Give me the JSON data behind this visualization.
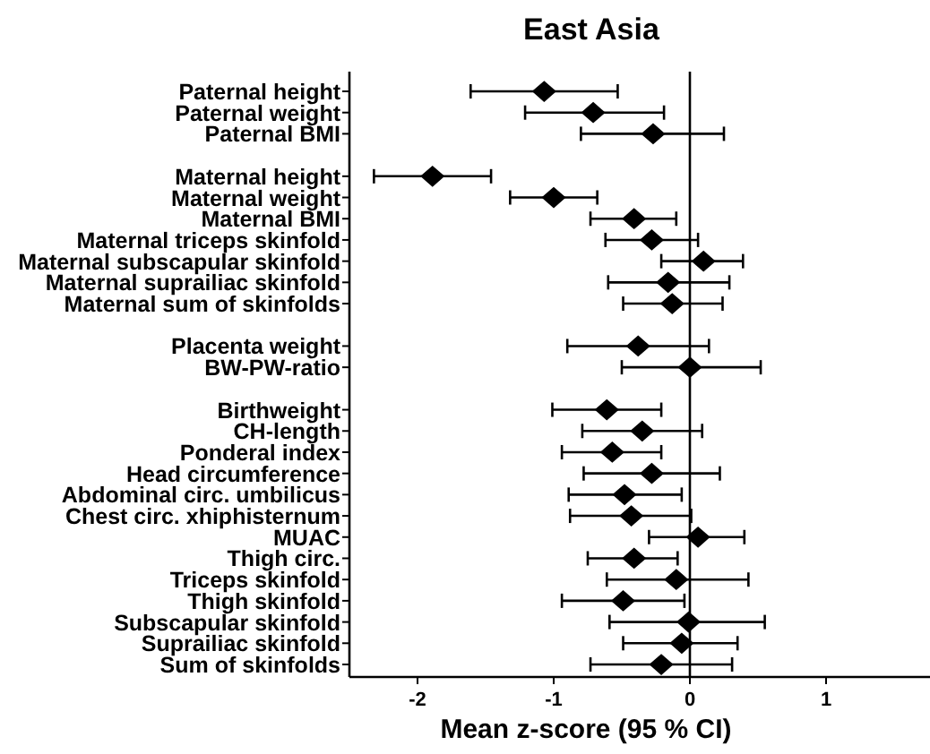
{
  "chart_data": {
    "type": "scatter",
    "orientation": "horizontal",
    "title": "East Asia",
    "xlabel": "Mean z-score (95 % CI)",
    "categories": [
      "Paternal height",
      "Paternal weight",
      "Paternal BMI",
      null,
      "Maternal height",
      "Maternal weight",
      "Maternal BMI",
      "Maternal triceps skinfold",
      "Maternal subscapular skinfold",
      "Maternal suprailiac skinfold",
      "Maternal sum of skinfolds",
      null,
      "Placenta weight",
      "BW-PW-ratio",
      null,
      "Birthweight",
      "CH-length",
      "Ponderal index",
      "Head circumference",
      "Abdominal circ. umbilicus",
      "Chest circ. xhiphisternum",
      "MUAC",
      "Thigh circ.",
      "Triceps skinfold",
      "Thigh skinfold",
      "Subscapular skinfold",
      "Suprailiac skinfold",
      "Sum of skinfolds"
    ],
    "values": [
      -1.07,
      -0.71,
      -0.27,
      null,
      -1.89,
      -1.0,
      -0.41,
      -0.28,
      0.1,
      -0.16,
      -0.13,
      null,
      -0.38,
      0.0,
      null,
      -0.61,
      -0.35,
      -0.57,
      -0.28,
      -0.48,
      -0.43,
      0.06,
      -0.41,
      -0.1,
      -0.49,
      -0.01,
      -0.06,
      -0.21
    ],
    "errors": [
      [
        -1.61,
        -0.53
      ],
      [
        -1.21,
        -0.19
      ],
      [
        -0.8,
        0.25
      ],
      null,
      [
        -2.32,
        -1.46
      ],
      [
        -1.32,
        -0.68
      ],
      [
        -0.73,
        -0.1
      ],
      [
        -0.62,
        0.06
      ],
      [
        -0.21,
        0.39
      ],
      [
        -0.6,
        0.29
      ],
      [
        -0.49,
        0.24
      ],
      null,
      [
        -0.9,
        0.14
      ],
      [
        -0.5,
        0.52
      ],
      null,
      [
        -1.01,
        -0.21
      ],
      [
        -0.79,
        0.09
      ],
      [
        -0.94,
        -0.21
      ],
      [
        -0.78,
        0.22
      ],
      [
        -0.89,
        -0.06
      ],
      [
        -0.88,
        0.01
      ],
      [
        -0.3,
        0.4
      ],
      [
        -0.75,
        -0.09
      ],
      [
        -0.61,
        0.43
      ],
      [
        -0.94,
        -0.04
      ],
      [
        -0.59,
        0.55
      ],
      [
        -0.49,
        0.35
      ],
      [
        -0.73,
        0.31
      ]
    ],
    "color": "#000000",
    "marker": "diamond",
    "xlim": [
      -2.5,
      1.75
    ],
    "xticks": [
      -2,
      -1,
      0,
      1
    ],
    "ref_lines": [
      {
        "axis": "x",
        "value": 0,
        "color": "#000000"
      }
    ]
  }
}
